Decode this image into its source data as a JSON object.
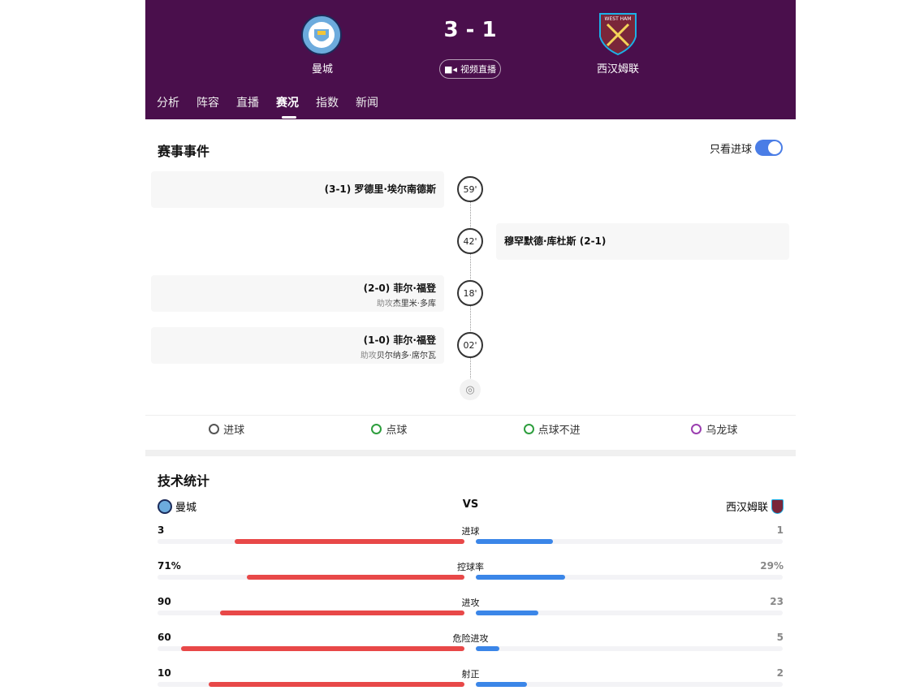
{
  "match": {
    "home": "曼城",
    "away": "西汉姆联",
    "score": "3 - 1",
    "live_label": "视频直播"
  },
  "tabs": [
    "分析",
    "阵容",
    "直播",
    "赛况",
    "指数",
    "新闻"
  ],
  "active_tab": "赛况",
  "events": {
    "title": "赛事事件",
    "toggle_label": "只看进球",
    "toggle_on": true,
    "items": [
      {
        "side": "home",
        "minute": "59'",
        "text": "(3-1) 罗德里·埃尔南德斯",
        "assist_label": "",
        "assist": ""
      },
      {
        "side": "away",
        "minute": "42'",
        "text": "穆罕默德·库杜斯 (2-1)",
        "assist_label": "",
        "assist": ""
      },
      {
        "side": "home",
        "minute": "18'",
        "text": "(2-0) 菲尔·福登",
        "assist_label": "助攻",
        "assist": "杰里米·多库"
      },
      {
        "side": "home",
        "minute": "02'",
        "text": "(1-0) 菲尔·福登",
        "assist_label": "助攻",
        "assist": "贝尔纳多·席尔瓦"
      }
    ],
    "legend": [
      {
        "label": "进球",
        "color": "#555555"
      },
      {
        "label": "点球",
        "color": "#2e9e3e"
      },
      {
        "label": "点球不进",
        "color": "#2e9e3e"
      },
      {
        "label": "乌龙球",
        "color": "#9b3fb0"
      }
    ]
  },
  "stats": {
    "title": "技术统计",
    "home": "曼城",
    "vs": "VS",
    "away": "西汉姆联",
    "home_color": "#e84848",
    "away_color": "#3b86e8",
    "rows": [
      {
        "name": "进球",
        "home": "3",
        "away": "1",
        "hv": 3,
        "av": 1
      },
      {
        "name": "控球率",
        "home": "71%",
        "away": "29%",
        "hv": 71,
        "av": 29
      },
      {
        "name": "进攻",
        "home": "90",
        "away": "23",
        "hv": 90,
        "av": 23
      },
      {
        "name": "危险进攻",
        "home": "60",
        "away": "5",
        "hv": 60,
        "av": 5
      },
      {
        "name": "射正",
        "home": "10",
        "away": "2",
        "hv": 10,
        "av": 2
      }
    ]
  }
}
